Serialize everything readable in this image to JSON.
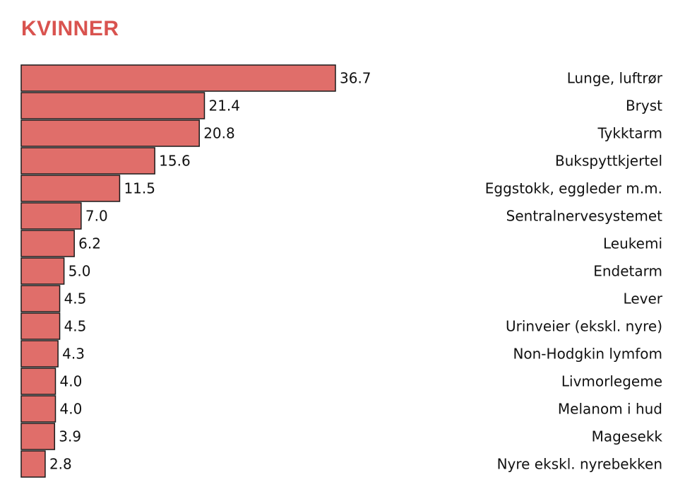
{
  "title": "KVINNER",
  "colors": {
    "title": "#d9534f",
    "bar": "#e06e6a",
    "bar_stroke": "#1a1a1a"
  },
  "chart_data": {
    "type": "bar",
    "orientation": "horizontal",
    "title": "KVINNER",
    "categories": [
      "Lunge, luftrør",
      "Bryst",
      "Tykktarm",
      "Bukspyttkjertel",
      "Eggstokk, eggleder m.m.",
      "Sentralnervesystemet",
      "Leukemi",
      "Endetarm",
      "Lever",
      "Urinveier (ekskl. nyre)",
      "Non-Hodgkin lymfom",
      "Livmorlegeme",
      "Melanom i hud",
      "Magesekk",
      "Nyre ekskl. nyrebekken"
    ],
    "values": [
      36.7,
      21.4,
      20.8,
      15.6,
      11.5,
      7.0,
      6.2,
      5.0,
      4.5,
      4.5,
      4.3,
      4.0,
      4.0,
      3.9,
      2.8
    ],
    "value_labels": [
      "36.7",
      "21.4",
      "20.8",
      "15.6",
      "11.5",
      "7.0",
      "6.2",
      "5.0",
      "4.5",
      "4.5",
      "4.3",
      "4.0",
      "4.0",
      "3.9",
      "2.8"
    ],
    "xlim": [
      0,
      36.7
    ],
    "grid": false,
    "legend": "none"
  }
}
